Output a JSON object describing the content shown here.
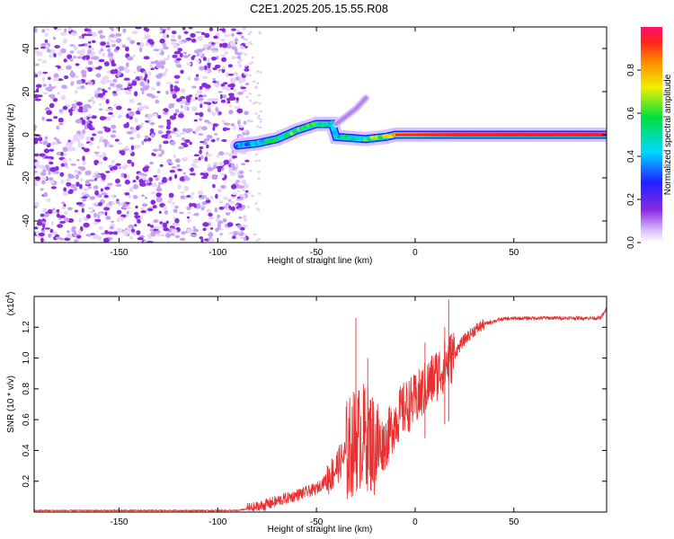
{
  "title": "C2E1.2025.205.15.55.R08",
  "colors": {
    "snr_line": "#e83030",
    "background": "#ffffff",
    "axis": "#000000"
  },
  "chart_data": [
    {
      "type": "heatmap",
      "xlabel": "Height of straight line (km)",
      "ylabel": "Frequency (Hz)",
      "xlim": [
        -193,
        97
      ],
      "ylim": [
        -50,
        50
      ],
      "xticks": [
        -150,
        -100,
        -50,
        0,
        50
      ],
      "xtick_labels": [
        "-150",
        "-100",
        "-50",
        "0",
        "50"
      ],
      "yticks": [
        -40,
        -20,
        0,
        20,
        40
      ],
      "ytick_labels": [
        "-40",
        "-20",
        "0",
        "20",
        "40"
      ],
      "colorbar": {
        "label": "Normalized spectral amplitude",
        "range": [
          0,
          1
        ],
        "ticks": [
          0.0,
          0.2,
          0.4,
          0.6,
          0.8
        ],
        "tick_labels": [
          "0.0",
          "0.2",
          "0.4",
          "0.6",
          "0.8"
        ],
        "colormap": "rainbow"
      },
      "noise_region": {
        "x_range": [
          -193,
          -85
        ],
        "amplitude": 0.1
      },
      "ridge": [
        {
          "x": -90,
          "f": -5,
          "amp": 0.3
        },
        {
          "x": -80,
          "f": -4,
          "amp": 0.45
        },
        {
          "x": -70,
          "f": -2,
          "amp": 0.55
        },
        {
          "x": -60,
          "f": 2,
          "amp": 0.6
        },
        {
          "x": -50,
          "f": 5,
          "amp": 0.55
        },
        {
          "x": -42,
          "f": 5,
          "amp": 0.45
        },
        {
          "x": -40,
          "f": -1,
          "amp": 0.4
        },
        {
          "x": -25,
          "f": -2,
          "amp": 0.55
        },
        {
          "x": -15,
          "f": -1,
          "amp": 0.65
        },
        {
          "x": -10,
          "f": 0,
          "amp": 0.8
        },
        {
          "x": 20,
          "f": 0,
          "amp": 0.92
        },
        {
          "x": 97,
          "f": 0,
          "amp": 0.95
        }
      ],
      "branch": [
        {
          "x": -40,
          "f": 5
        },
        {
          "x": -30,
          "f": 12
        },
        {
          "x": -25,
          "f": 17
        }
      ]
    },
    {
      "type": "line",
      "xlabel": "Height of straight line (km)",
      "ylabel": "SNR (10 * v/v)",
      "y_scale_label": "(x10",
      "y_scale_exp": "4",
      "y_scale_close": ")",
      "xlim": [
        -193,
        97
      ],
      "ylim": [
        0,
        1.4
      ],
      "xticks": [
        -150,
        -100,
        -50,
        0,
        50
      ],
      "xtick_labels": [
        "-150",
        "-100",
        "-50",
        "0",
        "50"
      ],
      "yticks": [
        0.2,
        0.4,
        0.6,
        0.8,
        1.0,
        1.2
      ],
      "ytick_labels": [
        "0.2",
        "0.4",
        "0.6",
        "0.8",
        "1.0",
        "1.2"
      ],
      "series": [
        {
          "envelope": [
            {
              "x": -193,
              "y": 0.01
            },
            {
              "x": -90,
              "y": 0.01
            },
            {
              "x": -80,
              "y": 0.03
            },
            {
              "x": -70,
              "y": 0.07
            },
            {
              "x": -60,
              "y": 0.11
            },
            {
              "x": -50,
              "y": 0.15
            },
            {
              "x": -42,
              "y": 0.25
            },
            {
              "x": -35,
              "y": 0.38
            },
            {
              "x": -30,
              "y": 0.47
            },
            {
              "x": -25,
              "y": 0.5
            },
            {
              "x": -20,
              "y": 0.42
            },
            {
              "x": -15,
              "y": 0.45
            },
            {
              "x": -10,
              "y": 0.6
            },
            {
              "x": -5,
              "y": 0.68
            },
            {
              "x": 0,
              "y": 0.72
            },
            {
              "x": 5,
              "y": 0.8
            },
            {
              "x": 10,
              "y": 0.88
            },
            {
              "x": 15,
              "y": 0.95
            },
            {
              "x": 20,
              "y": 1.03
            },
            {
              "x": 25,
              "y": 1.12
            },
            {
              "x": 30,
              "y": 1.18
            },
            {
              "x": 35,
              "y": 1.22
            },
            {
              "x": 40,
              "y": 1.24
            },
            {
              "x": 45,
              "y": 1.255
            },
            {
              "x": 60,
              "y": 1.26
            },
            {
              "x": 80,
              "y": 1.26
            },
            {
              "x": 94,
              "y": 1.26
            },
            {
              "x": 97,
              "y": 1.32
            }
          ],
          "peaks": [
            {
              "x": -30,
              "y": 1.26
            },
            {
              "x": -24,
              "y": 1.0
            },
            {
              "x": 5,
              "y": 1.1
            },
            {
              "x": 15,
              "y": 1.2
            },
            {
              "x": 17,
              "y": 1.38
            }
          ]
        }
      ]
    }
  ]
}
